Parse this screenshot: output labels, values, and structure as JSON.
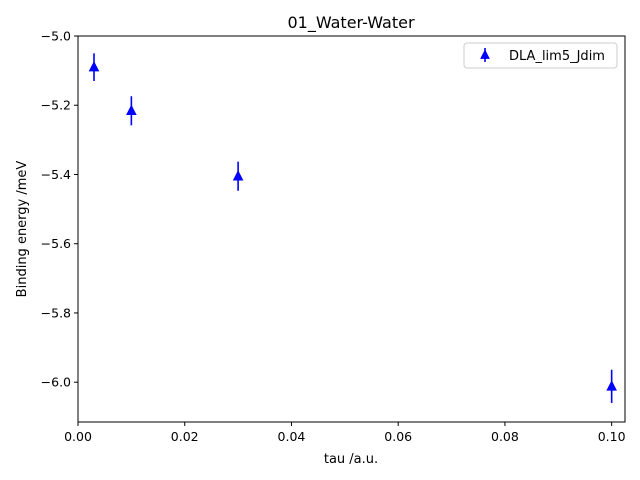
{
  "chart_data": {
    "type": "scatter",
    "title": "01_Water-Water",
    "xlabel": "tau /a.u.",
    "ylabel": "Binding energy /meV",
    "xlim": [
      0.0,
      0.1025
    ],
    "ylim": [
      -6.115,
      -5.0
    ],
    "xticks": [
      0.0,
      0.02,
      0.04,
      0.06,
      0.08,
      0.1
    ],
    "xtick_labels": [
      "0.00",
      "0.02",
      "0.04",
      "0.06",
      "0.08",
      "0.10"
    ],
    "yticks": [
      -6.0,
      -5.8,
      -5.6,
      -5.4,
      -5.2,
      -5.0
    ],
    "ytick_labels": [
      "−6.0",
      "−5.8",
      "−5.6",
      "−5.4",
      "−5.2",
      "−5.0"
    ],
    "grid": false,
    "legend_position": "top-right",
    "series": [
      {
        "name": "DLA_lim5_Jdim",
        "color": "#0000ff",
        "marker": "triangle-up",
        "x": [
          0.003,
          0.01,
          0.03,
          0.1
        ],
        "y": [
          -5.09,
          -5.216,
          -5.405,
          -6.012
        ],
        "yerr": [
          0.04,
          0.042,
          0.042,
          0.048
        ]
      }
    ]
  }
}
